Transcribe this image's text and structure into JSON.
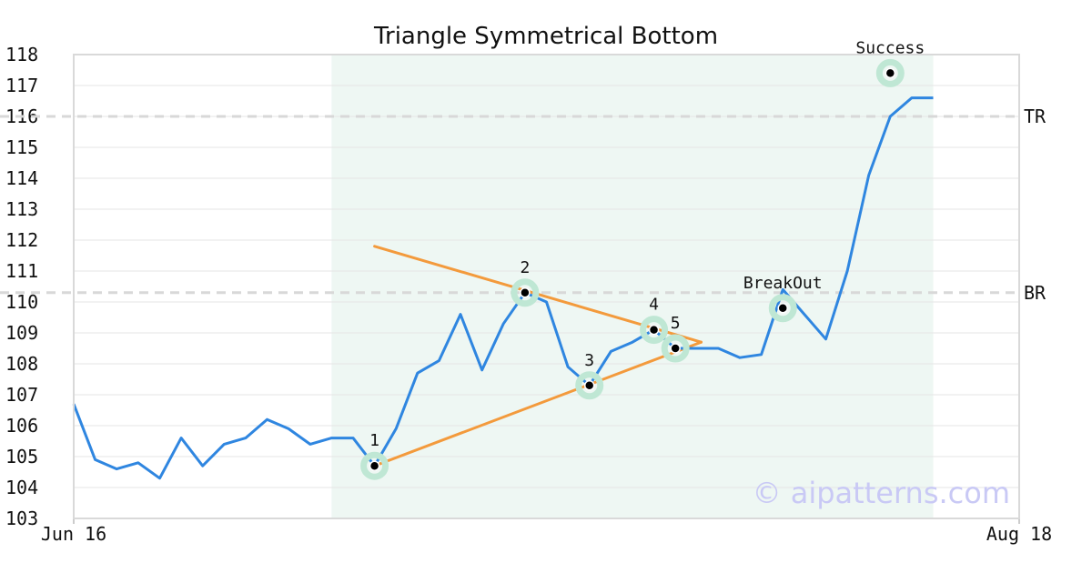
{
  "chart_data": {
    "type": "line",
    "title": "Triangle Symmetrical Bottom",
    "watermark": "© aipatterns.com",
    "ylim": [
      103,
      118
    ],
    "y_ticks": [
      103,
      104,
      105,
      106,
      107,
      108,
      109,
      110,
      111,
      112,
      113,
      114,
      115,
      116,
      117,
      118
    ],
    "x_tick_labels": [
      {
        "label": "Jun 16",
        "index": 0
      },
      {
        "label": "Aug 18",
        "index": 44
      }
    ],
    "x_count": 45,
    "grid": true,
    "colors": {
      "price": "#2f86e0",
      "triangle": "#f39a3c",
      "marker_ring": "#bfe7d4",
      "highlight": "#eef7f3",
      "refline": "#d8d8d8"
    },
    "highlight_range": [
      12,
      40
    ],
    "series": [
      {
        "values": [
          106.7,
          104.9,
          104.6,
          104.8,
          104.3,
          105.6,
          104.7,
          105.4,
          105.6,
          106.2,
          105.9,
          105.4,
          105.6,
          105.6,
          104.7,
          105.9,
          107.7,
          108.1,
          109.6,
          107.8,
          109.3,
          110.3,
          110.0,
          107.9,
          107.3,
          108.4,
          108.7,
          109.1,
          108.5,
          108.5,
          108.5,
          108.2,
          108.3,
          110.4,
          109.6,
          108.8,
          111.0,
          114.1,
          116.0,
          116.6,
          116.6
        ]
      }
    ],
    "triangle_lines": [
      {
        "from": [
          14,
          111.8
        ],
        "to": [
          29.2,
          108.7
        ]
      },
      {
        "from": [
          14,
          104.7
        ],
        "to": [
          29.2,
          108.7
        ]
      }
    ],
    "pattern_points": [
      {
        "label": "1",
        "x": 14,
        "y": 104.7
      },
      {
        "label": "2",
        "x": 21,
        "y": 110.3
      },
      {
        "label": "3",
        "x": 24,
        "y": 107.3
      },
      {
        "label": "4",
        "x": 27,
        "y": 109.1
      },
      {
        "label": "5",
        "x": 28,
        "y": 108.5
      },
      {
        "label": "BreakOut",
        "x": 33,
        "y": 109.8
      },
      {
        "label": "Success",
        "x": 38,
        "y": 117.4
      }
    ],
    "reference_lines": [
      {
        "label": "TR",
        "y": 116.0
      },
      {
        "label": "BR",
        "y": 110.3
      }
    ]
  }
}
